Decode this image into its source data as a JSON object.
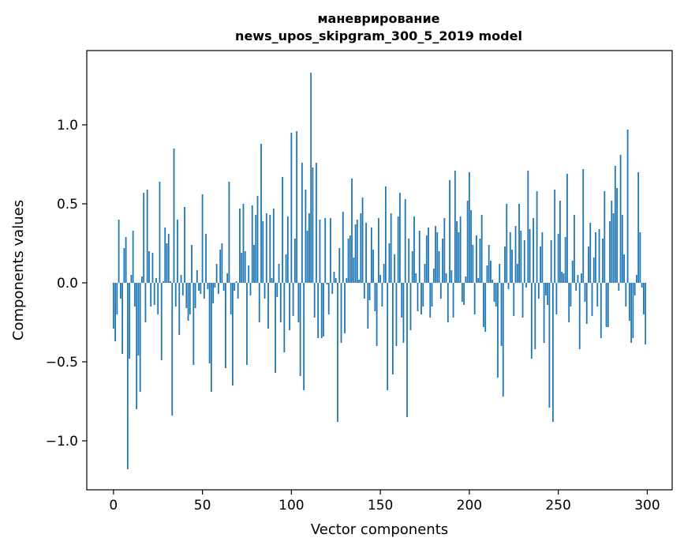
{
  "chart_data": {
    "type": "bar",
    "title": [
      "маневрирование",
      "news_upos_skipgram_300_5_2019 model"
    ],
    "xlabel": "Vector components",
    "ylabel": "Components values",
    "xlim": [
      -15,
      314
    ],
    "ylim": [
      -1.31,
      1.47
    ],
    "grid": false,
    "bar_color": "#1f77b4",
    "x_ticks": [
      {
        "value": 0,
        "label": "0"
      },
      {
        "value": 50,
        "label": "50"
      },
      {
        "value": 100,
        "label": "100"
      },
      {
        "value": 150,
        "label": "150"
      },
      {
        "value": 200,
        "label": "200"
      },
      {
        "value": 250,
        "label": "250"
      },
      {
        "value": 300,
        "label": "300"
      }
    ],
    "y_ticks": [
      {
        "value": -1.0,
        "label": "−1.0"
      },
      {
        "value": -0.5,
        "label": "−0.5"
      },
      {
        "value": 0.0,
        "label": "0.0"
      },
      {
        "value": 0.5,
        "label": "0.5"
      },
      {
        "value": 1.0,
        "label": "1.0"
      }
    ],
    "values": [
      -0.29,
      -0.37,
      -0.2,
      0.4,
      -0.1,
      -0.45,
      0.22,
      0.29,
      -1.18,
      -0.48,
      0.05,
      0.33,
      -0.15,
      -0.8,
      -0.46,
      -0.69,
      0.04,
      0.57,
      -0.25,
      0.59,
      0.2,
      -0.15,
      0.19,
      -0.14,
      0.03,
      -0.2,
      0.64,
      -0.49,
      0.01,
      0.35,
      0.25,
      0.31,
      0.01,
      -0.84,
      0.85,
      -0.15,
      0.4,
      -0.33,
      0.05,
      -0.08,
      0.48,
      -0.16,
      -0.24,
      -0.2,
      0.24,
      -0.52,
      -0.16,
      0.08,
      -0.05,
      -0.07,
      0.56,
      -0.1,
      0.31,
      -0.04,
      -0.51,
      -0.69,
      -0.13,
      -0.03,
      0.12,
      -0.07,
      0.21,
      0.25,
      -0.05,
      -0.54,
      0.06,
      0.64,
      -0.2,
      -0.65,
      -0.05,
      0.01,
      -0.1,
      0.47,
      0.19,
      0.5,
      0.2,
      -0.52,
      0.11,
      -0.08,
      0.49,
      0.24,
      0.43,
      0.55,
      -0.25,
      0.88,
      0.39,
      -0.1,
      0.44,
      -0.29,
      0.43,
      0.03,
      0.47,
      -0.57,
      -0.09,
      0.12,
      -0.25,
      0.67,
      -0.44,
      0.18,
      0.42,
      -0.3,
      0.95,
      -0.21,
      0.28,
      0.96,
      -0.25,
      -0.59,
      0.76,
      -0.68,
      0.59,
      0.33,
      0.44,
      1.33,
      0.73,
      -0.22,
      0.76,
      -0.35,
      0.4,
      -0.35,
      -0.34,
      0.41,
      -0.01,
      -0.2,
      0.41,
      -0.07,
      0.07,
      0.03,
      -0.88,
      0.22,
      -0.38,
      0.45,
      -0.32,
      0.03,
      0.28,
      0.3,
      0.66,
      0.16,
      0.37,
      0.4,
      0.02,
      0.44,
      0.54,
      -0.1,
      0.38,
      -0.29,
      -0.11,
      0.35,
      0.21,
      -0.18,
      -0.4,
      0.41,
      0.05,
      -0.15,
      0.12,
      0.61,
      -0.68,
      0.25,
      0.44,
      -0.58,
      0.18,
      -0.4,
      0.42,
      0.57,
      -0.22,
      -0.38,
      0.53,
      -0.85,
      0.28,
      -0.3,
      0.2,
      0.42,
      0.06,
      -0.18,
      0.33,
      -0.2,
      -0.15,
      0.12,
      0.3,
      0.35,
      -0.22,
      -0.15,
      0.09,
      0.36,
      0.32,
      0.2,
      -0.1,
      0.28,
      0.41,
      0.06,
      -0.25,
      0.65,
      0.08,
      -0.22,
      0.71,
      0.39,
      0.32,
      0.42,
      -0.12,
      -0.14,
      0.04,
      0.52,
      0.7,
      0.46,
      0.24,
      -0.2,
      0.3,
      0.03,
      0.28,
      0.43,
      -0.28,
      -0.31,
      0.11,
      0.24,
      0.14,
      0.02,
      -0.12,
      -0.15,
      -0.6,
      0.12,
      -0.4,
      -0.72,
      0.23,
      0.5,
      -0.04,
      0.32,
      0.21,
      -0.21,
      0.36,
      0.12,
      0.5,
      0.33,
      -0.22,
      0.27,
      -0.03,
      0.71,
      0.34,
      -0.48,
      0.41,
      -0.42,
      0.58,
      -0.1,
      0.23,
      0.32,
      -0.38,
      -0.08,
      -0.14,
      -0.79,
      0.27,
      -0.88,
      0.59,
      -0.2,
      0.31,
      0.52,
      0.07,
      0.06,
      0.29,
      0.69,
      -0.25,
      -0.15,
      0.14,
      0.43,
      -0.05,
      0.05,
      -0.42,
      0.06,
      0.72,
      -0.12,
      -0.26,
      0.23,
      0.38,
      -0.21,
      0.16,
      0.32,
      -0.15,
      0.34,
      -0.35,
      0.28,
      0.58,
      -0.28,
      -0.28,
      0.39,
      0.52,
      0.44,
      0.74,
      0.6,
      -0.05,
      0.81,
      0.43,
      0.18,
      -0.15,
      0.97,
      -0.24,
      -0.38,
      -0.35,
      -0.08,
      0.05,
      0.7,
      0.32,
      -0.03,
      -0.2,
      -0.39
    ]
  }
}
